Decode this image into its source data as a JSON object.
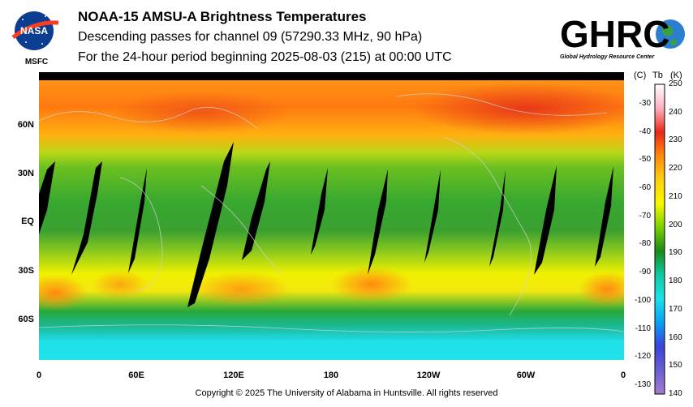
{
  "header": {
    "title": "NOAA-15 AMSU-A Brightness Temperatures",
    "subtitle_line1": "Descending passes for channel 09 (57290.33 MHz, 90 hPa)",
    "subtitle_line2": "For the 24-hour period beginning 2025-08-03 (215) at 00:00 UTC"
  },
  "logos": {
    "left": {
      "name": "NASA",
      "caption": "MSFC"
    },
    "right": {
      "name": "GHRC",
      "caption": "Global Hydrology Resource Center"
    }
  },
  "map": {
    "lat_labels": [
      "60N",
      "30N",
      "EQ",
      "30S",
      "60S"
    ],
    "lon_labels": [
      "0",
      "60E",
      "120E",
      "180",
      "120W",
      "60W",
      "0"
    ]
  },
  "colorbar": {
    "unit_c": "(C)",
    "unit_tb": "Tb",
    "unit_k": "(K)",
    "kelvin_ticks": [
      "250",
      "240",
      "230",
      "220",
      "210",
      "200",
      "190",
      "180",
      "170",
      "160",
      "150",
      "140"
    ],
    "celsius_ticks": [
      "-30",
      "-40",
      "-50",
      "-60",
      "-70",
      "-80",
      "-90",
      "-100",
      "-110",
      "-120",
      "-130"
    ],
    "colors": [
      "#ffffff",
      "#ffb0c0",
      "#e82818",
      "#ff8a10",
      "#ffd010",
      "#f8f800",
      "#7ad000",
      "#1a8a1a",
      "#10c8a0",
      "#20e0e8",
      "#0aa0f0",
      "#3a44d8",
      "#6a60d0",
      "#a67ccc"
    ]
  },
  "footer": {
    "copyright": "Copyright © 2025 The University of Alabama in Huntsville.  All rights reserved"
  }
}
